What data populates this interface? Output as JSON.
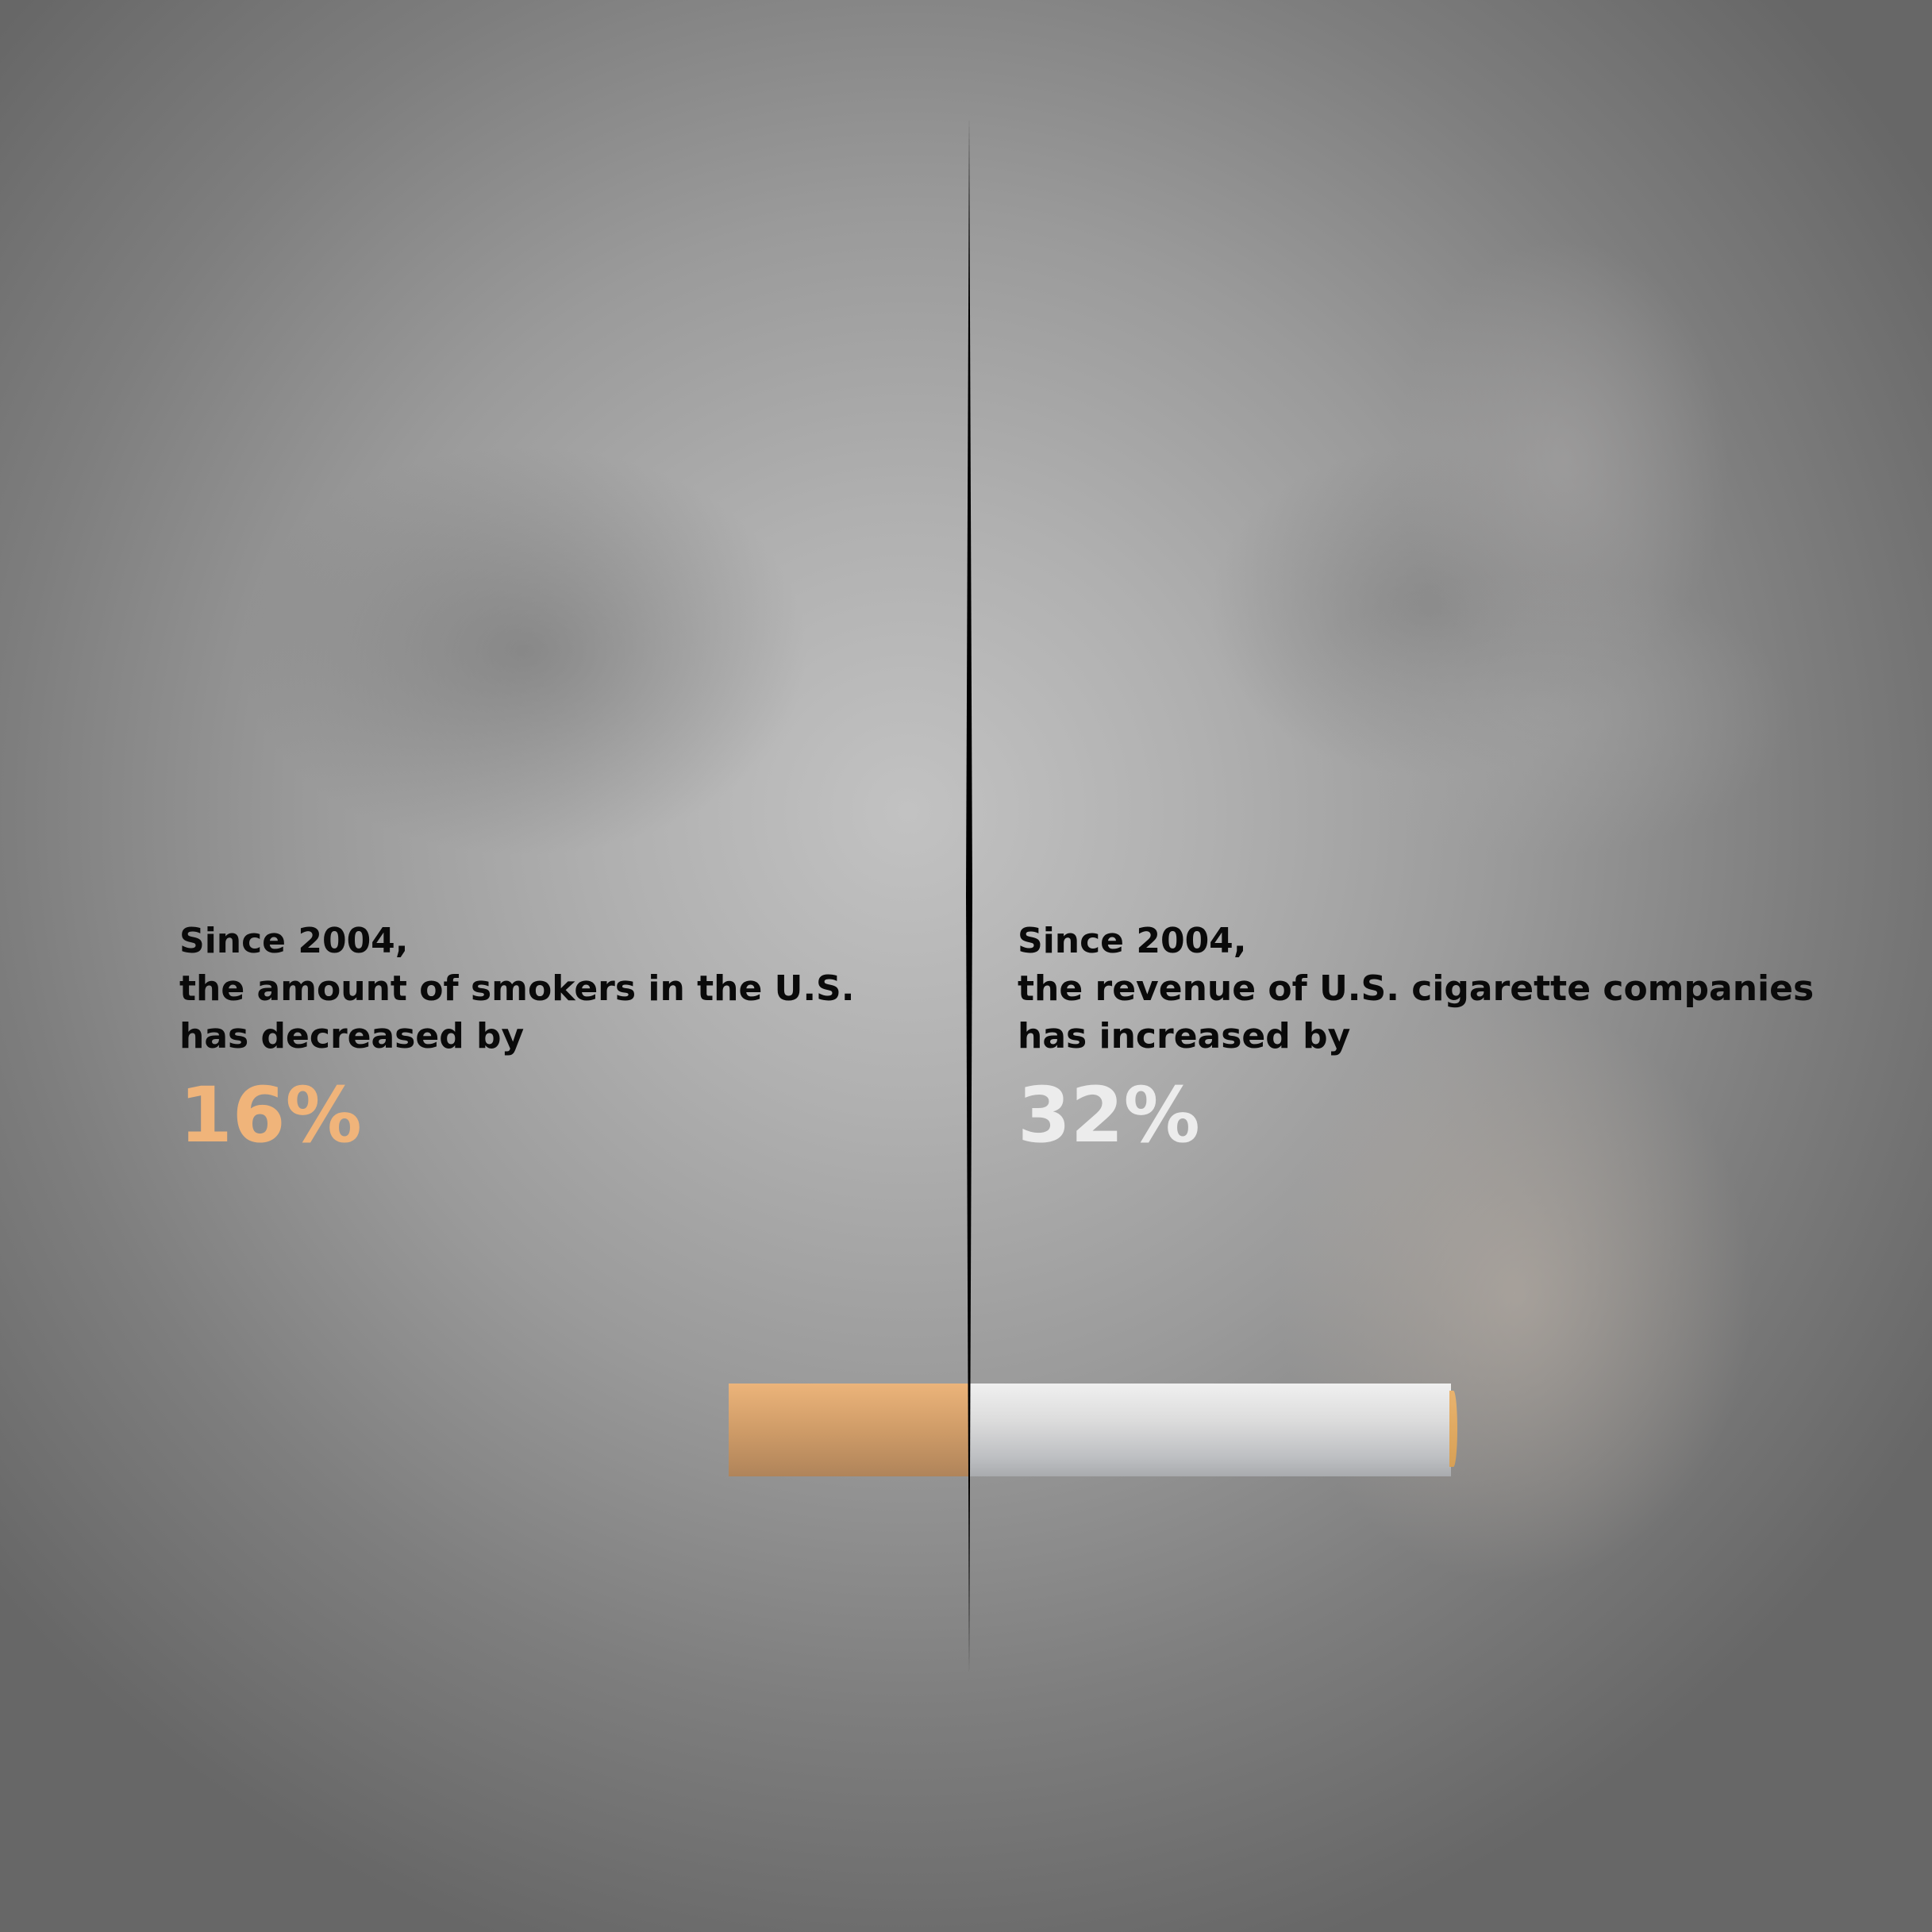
{
  "colors": {
    "left_percentage": "#f0b47a",
    "right_percentage": "#ececec",
    "text": "#0a0a0a",
    "divider": "#000000",
    "filter": "#cf9c68",
    "paper": "#dcdcdc"
  },
  "left": {
    "line1": "Since 2004,",
    "line2": "the amount of smokers in the U.S.",
    "line3": "has decreased by",
    "percentage": "16%"
  },
  "right": {
    "line1": "Since 2004,",
    "line2": "the revenue of U.S. cigarette companies",
    "line3": "has increased by",
    "percentage": "32%"
  }
}
